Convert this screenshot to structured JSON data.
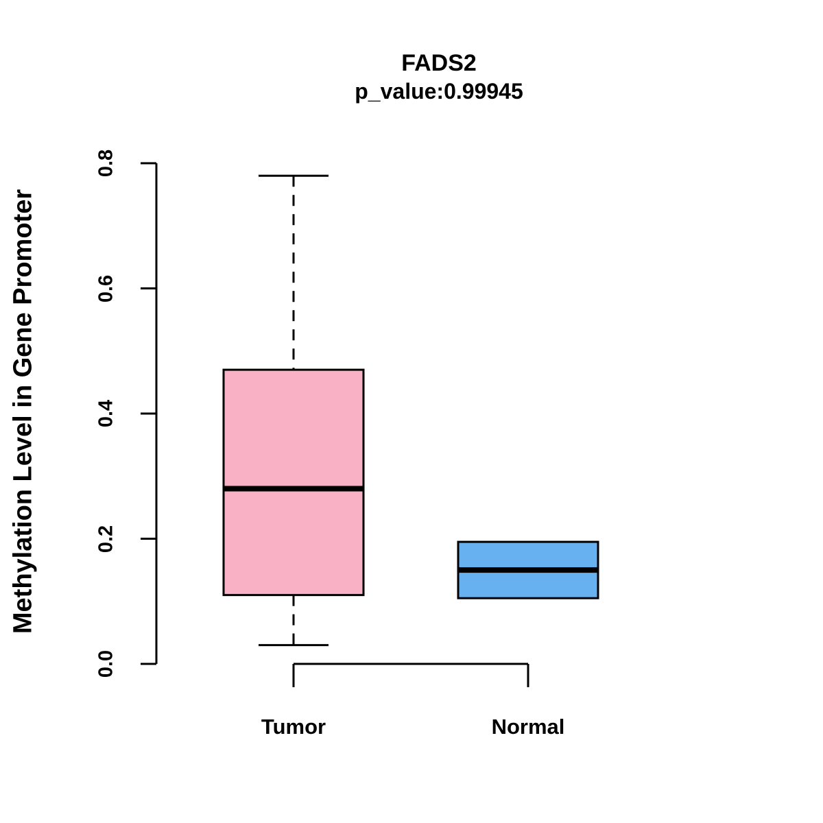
{
  "title": "FADS2",
  "subtitle": "p_value:0.99945",
  "ylabel": "Methylation Level in Gene Promoter",
  "chart_data": {
    "type": "boxplot",
    "title": "FADS2",
    "subtitle": "p_value:0.99945",
    "xlabel": "",
    "ylabel": "Methylation Level in Gene Promoter",
    "ylim": [
      0.0,
      0.8
    ],
    "yticks": [
      0.0,
      0.2,
      0.4,
      0.6,
      0.8
    ],
    "ytick_labels": [
      "0.0",
      "0.2",
      "0.4",
      "0.6",
      "0.8"
    ],
    "categories": [
      "Tumor",
      "Normal"
    ],
    "grid": false,
    "legend": "none",
    "series": [
      {
        "name": "Tumor",
        "lower_whisker": 0.03,
        "q1": 0.11,
        "median": 0.28,
        "q3": 0.47,
        "upper_whisker": 0.78,
        "color": "#F9B1C6",
        "border_color": "#000000"
      },
      {
        "name": "Normal",
        "lower_whisker": 0.105,
        "q1": 0.105,
        "median": 0.15,
        "q3": 0.195,
        "upper_whisker": 0.195,
        "color": "#68B1F1",
        "border_color": "#000000"
      }
    ]
  }
}
